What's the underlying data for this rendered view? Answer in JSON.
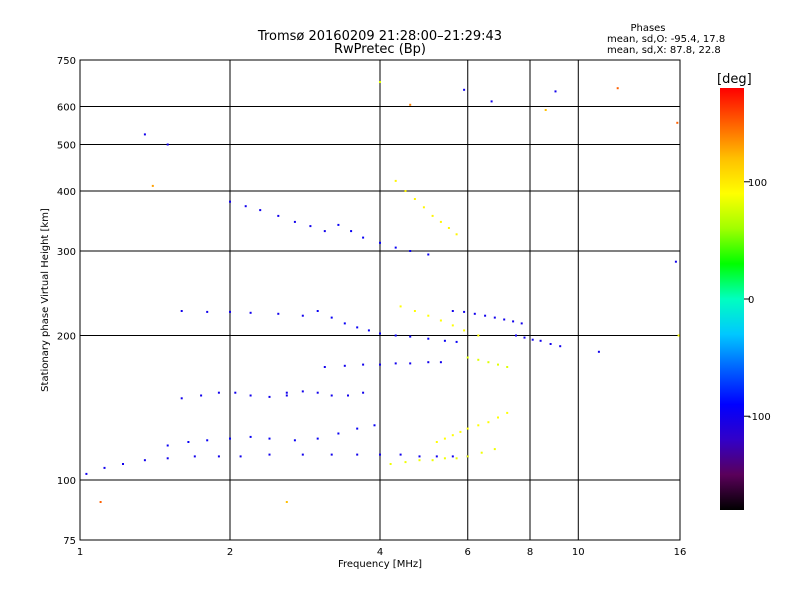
{
  "chart_data": {
    "type": "scatter",
    "title": "Tromsø 20160209 21:28:00–21:29:43",
    "subtitle": "RwPretec (Bp)",
    "xlabel": "Frequency [MHz]",
    "ylabel": "Stationary phase Virtual Height [km]",
    "x_scale": "log",
    "y_scale": "log",
    "xlim": [
      1,
      16
    ],
    "ylim": [
      75,
      750
    ],
    "x_ticks": [
      1,
      2,
      4,
      6,
      8,
      10,
      16
    ],
    "x_tick_labels": [
      "1",
      "2",
      "4",
      "6",
      "8",
      "10",
      "16"
    ],
    "y_ticks": [
      75,
      100,
      200,
      300,
      400,
      500,
      600,
      750
    ],
    "y_tick_labels": [
      "75",
      "100",
      "200",
      "300",
      "400",
      "500",
      "600",
      "750"
    ],
    "grid": true,
    "phase_box": {
      "heading": "Phases",
      "line_o": "mean, sd,O: -95.4, 17.8",
      "line_x": "mean, sd,X:  87.8, 22.8"
    },
    "colorbar": {
      "label": "[deg]",
      "range": [
        -180,
        180
      ],
      "ticks": [
        100,
        0,
        -100
      ],
      "tick_labels": [
        "100",
        "0",
        "-100"
      ],
      "palette": [
        "#000000",
        "#5a005a",
        "#3200c8",
        "#0000ff",
        "#0060ff",
        "#00c8ff",
        "#00ffc0",
        "#00ff00",
        "#a0ff00",
        "#ffff00",
        "#ffc000",
        "#ff6000",
        "#ff0000"
      ]
    },
    "traces": [
      {
        "phase": -100,
        "x": [
          1.03,
          1.12,
          1.22,
          1.35,
          1.5,
          1.7,
          1.9,
          2.1,
          2.4,
          2.8,
          3.2,
          3.6,
          4.0,
          4.4,
          4.8,
          5.2,
          5.6,
          6.0
        ],
        "y": [
          103,
          106,
          108,
          110,
          111,
          112,
          112,
          112,
          113,
          113,
          113,
          113,
          113,
          113,
          112,
          112,
          112,
          112
        ]
      },
      {
        "phase": -95,
        "x": [
          1.5,
          1.65,
          1.8,
          2.0,
          2.2,
          2.4,
          2.7,
          3.0,
          3.3,
          3.6,
          3.9
        ],
        "y": [
          118,
          120,
          121,
          122,
          123,
          122,
          121,
          122,
          125,
          128,
          130
        ]
      },
      {
        "phase": -100,
        "x": [
          1.6,
          1.75,
          1.9,
          2.05,
          2.2,
          2.4,
          2.6
        ],
        "y": [
          148,
          150,
          152,
          152,
          150,
          149,
          150
        ]
      },
      {
        "phase": -100,
        "x": [
          2.6,
          2.8,
          3.0,
          3.2,
          3.45,
          3.7
        ],
        "y": [
          152,
          153,
          152,
          150,
          150,
          152
        ]
      },
      {
        "phase": -100,
        "x": [
          1.6,
          1.8,
          2.0,
          2.2,
          2.5,
          2.8
        ],
        "y": [
          225,
          224,
          224,
          223,
          222,
          220
        ]
      },
      {
        "phase": -95,
        "x": [
          3.0,
          3.2,
          3.4,
          3.6,
          3.8,
          4.0,
          4.3,
          4.6,
          5.0,
          5.4,
          5.7
        ],
        "y": [
          225,
          218,
          212,
          208,
          205,
          202,
          200,
          199,
          197,
          195,
          194
        ]
      },
      {
        "phase": -100,
        "x": [
          2.0,
          2.15,
          2.3,
          2.5,
          2.7,
          2.9,
          3.1
        ],
        "y": [
          380,
          372,
          365,
          355,
          345,
          338,
          330
        ]
      },
      {
        "phase": -95,
        "x": [
          3.3,
          3.5,
          3.7,
          4.0,
          4.3,
          4.6,
          5.0
        ],
        "y": [
          340,
          330,
          320,
          312,
          305,
          300,
          295
        ]
      },
      {
        "phase": -100,
        "x": [
          3.1,
          3.4,
          3.7,
          4.0,
          4.3,
          4.6,
          5.0,
          5.3
        ],
        "y": [
          172,
          173,
          174,
          174,
          175,
          175,
          176,
          176
        ]
      },
      {
        "phase": 85,
        "x": [
          4.2,
          4.5,
          4.8,
          5.1,
          5.4,
          5.7,
          6.0,
          6.4,
          6.8
        ],
        "y": [
          108,
          109,
          110,
          110,
          111,
          111,
          112,
          114,
          116
        ]
      },
      {
        "phase": 90,
        "x": [
          4.4,
          4.7,
          5.0,
          5.3,
          5.6,
          5.9,
          6.3
        ],
        "y": [
          230,
          225,
          220,
          215,
          210,
          205,
          200
        ]
      },
      {
        "phase": 95,
        "x": [
          4.3,
          4.5,
          4.7,
          4.9,
          5.1,
          5.3,
          5.5,
          5.7
        ],
        "y": [
          420,
          400,
          385,
          370,
          355,
          345,
          335,
          325
        ]
      },
      {
        "phase": 90,
        "x": [
          5.2,
          5.4,
          5.6,
          5.8,
          6.0,
          6.3,
          6.6,
          6.9,
          7.2
        ],
        "y": [
          120,
          122,
          124,
          126,
          128,
          130,
          132,
          135,
          138
        ]
      },
      {
        "phase": -100,
        "x": [
          5.6,
          5.9,
          6.2,
          6.5,
          6.8,
          7.1,
          7.4,
          7.7
        ],
        "y": [
          225,
          224,
          222,
          220,
          218,
          216,
          214,
          212
        ]
      },
      {
        "phase": 80,
        "x": [
          6.0,
          6.3,
          6.6,
          6.9,
          7.2
        ],
        "y": [
          180,
          178,
          176,
          174,
          172
        ]
      },
      {
        "phase": -100,
        "x": [
          7.5,
          7.8,
          8.1,
          8.4,
          8.8,
          9.2
        ],
        "y": [
          200,
          198,
          196,
          195,
          192,
          190
        ]
      }
    ],
    "isolated_points": [
      {
        "phase": 150,
        "x": 1.1,
        "y": 90
      },
      {
        "phase": 130,
        "x": 1.4,
        "y": 410
      },
      {
        "phase": -100,
        "x": 1.35,
        "y": 525
      },
      {
        "phase": -100,
        "x": 1.5,
        "y": 500
      },
      {
        "phase": 120,
        "x": 2.6,
        "y": 90
      },
      {
        "phase": 140,
        "x": 4.6,
        "y": 605
      },
      {
        "phase": 80,
        "x": 4.0,
        "y": 675
      },
      {
        "phase": -100,
        "x": 5.9,
        "y": 650
      },
      {
        "phase": -100,
        "x": 6.7,
        "y": 615
      },
      {
        "phase": -100,
        "x": 9.0,
        "y": 645
      },
      {
        "phase": 120,
        "x": 8.6,
        "y": 590
      },
      {
        "phase": 150,
        "x": 12.0,
        "y": 655
      },
      {
        "phase": 150,
        "x": 15.8,
        "y": 555
      },
      {
        "phase": -100,
        "x": 15.7,
        "y": 285
      },
      {
        "phase": -100,
        "x": 11.0,
        "y": 185
      },
      {
        "phase": 90,
        "x": 15.9,
        "y": 200
      }
    ]
  }
}
